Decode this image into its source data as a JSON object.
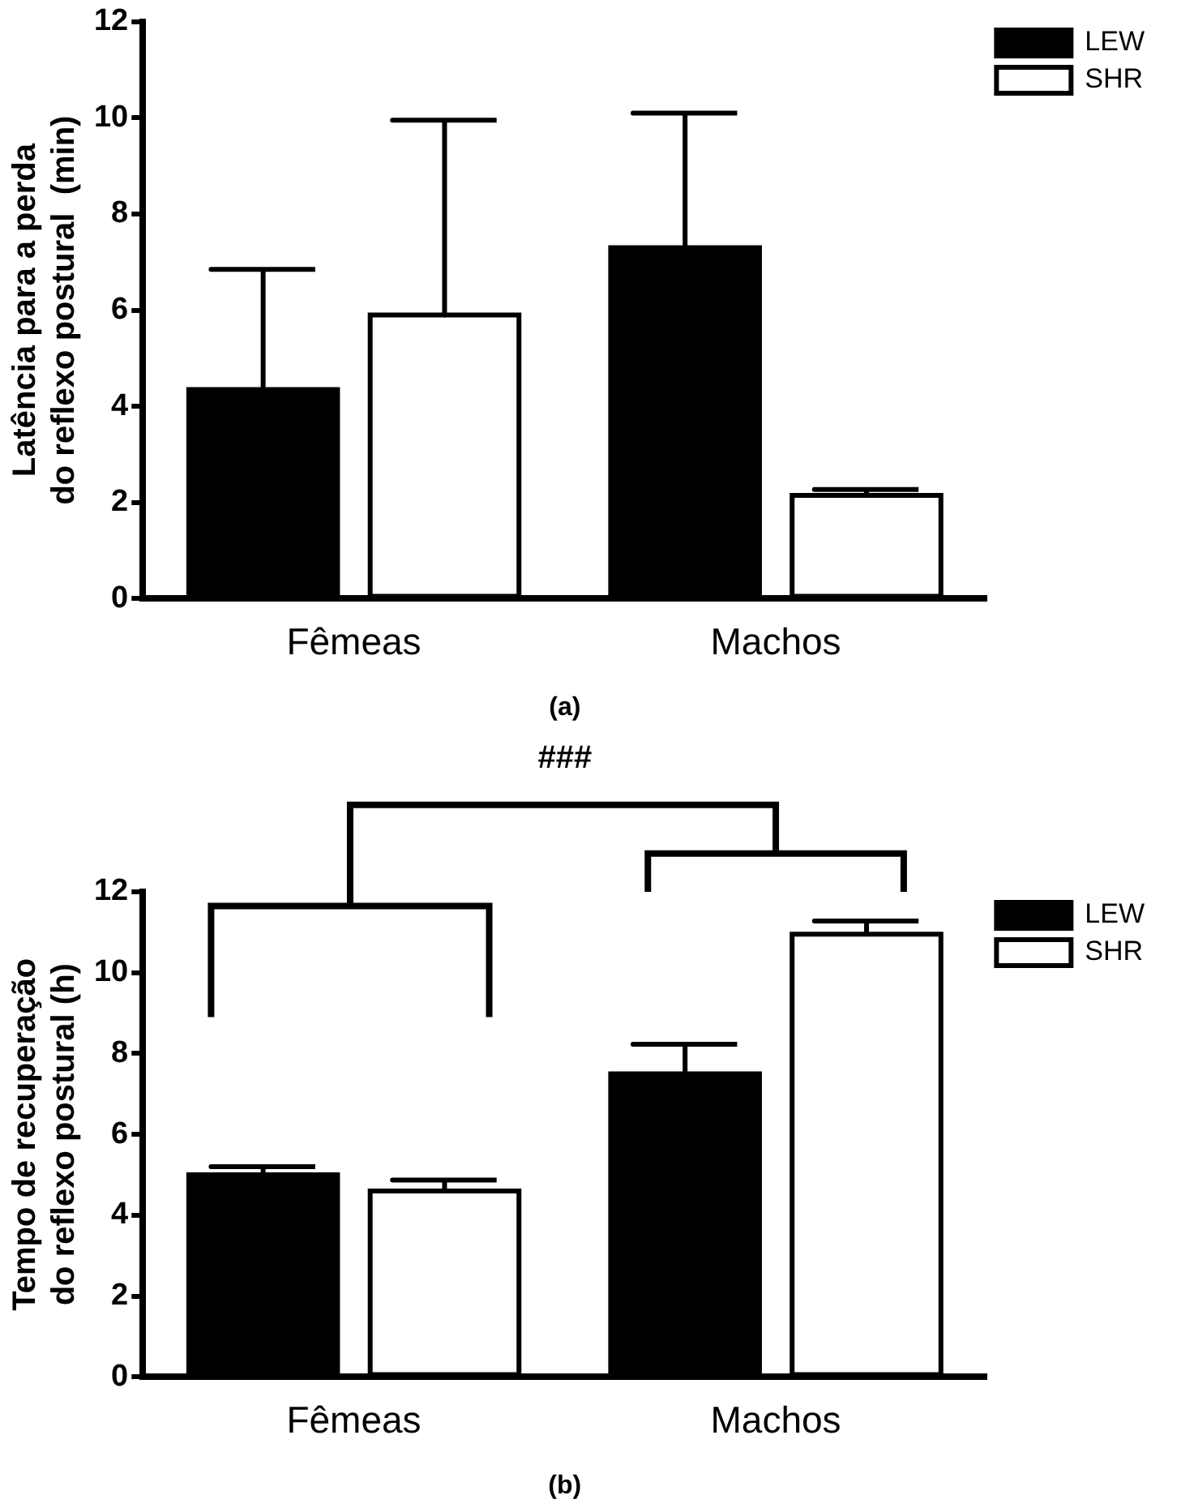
{
  "chart_data": [
    {
      "type": "bar",
      "xlabel": "(a)",
      "ylabel": "Latência para a perda\ndo reflexo postural  (min)",
      "categories": [
        "Fêmeas",
        "Machos"
      ],
      "series": [
        {
          "name": "LEW",
          "color": "#000000",
          "values": [
            4.35,
            7.3
          ],
          "errors": [
            [
              4.35,
              6.85
            ],
            [
              7.3,
              10.1
            ]
          ]
        },
        {
          "name": "SHR",
          "color": "#ffffff",
          "values": [
            5.9,
            2.15
          ],
          "errors": [
            [
              5.9,
              9.95
            ],
            [
              2.15,
              2.27
            ]
          ]
        }
      ],
      "ylim": [
        0,
        12
      ],
      "yticks": [
        0,
        2,
        4,
        6,
        8,
        10,
        12
      ],
      "grid": false,
      "legend": "top right"
    },
    {
      "type": "bar",
      "xlabel": "(b)",
      "ylabel": "Tempo de recuperação\ndo reflexo postural (h)",
      "categories": [
        "Fêmeas",
        "Machos"
      ],
      "series": [
        {
          "name": "LEW",
          "color": "#000000",
          "values": [
            5.0,
            7.5
          ],
          "errors": [
            [
              5.0,
              5.2
            ],
            [
              7.5,
              8.23
            ]
          ]
        },
        {
          "name": "SHR",
          "color": "#ffffff",
          "values": [
            4.6,
            10.95
          ],
          "errors": [
            [
              4.6,
              4.87
            ],
            [
              10.95,
              11.28
            ]
          ]
        }
      ],
      "ylim": [
        0,
        12
      ],
      "yticks": [
        0,
        2,
        4,
        6,
        8,
        10,
        12
      ],
      "grid": false,
      "legend": "top right",
      "annotations": [
        "###"
      ]
    }
  ]
}
